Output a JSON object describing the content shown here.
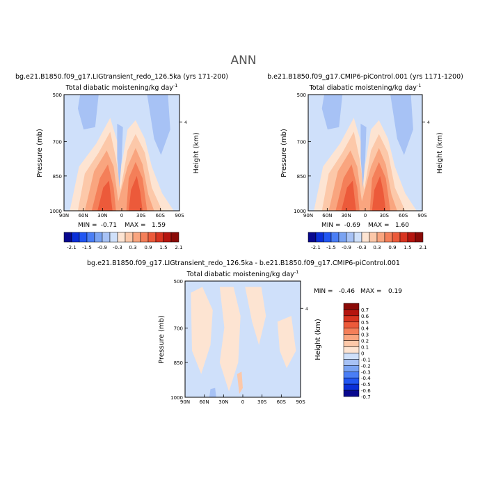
{
  "page_title": "ANN",
  "chart_data": [
    {
      "type": "heatmap",
      "case_label": "bg.e21.B1850.f09_g17.LIGtransient_redo_126.5ka (yrs 171-200)",
      "title": "Total diabatic moistening/kg day",
      "title_exponent": "-1",
      "ylabel": "Pressure (mb)",
      "ylabel_right": "Height (km)",
      "x_ticks": [
        "90N",
        "60N",
        "30N",
        "0",
        "30S",
        "60S",
        "90S"
      ],
      "y_ticks": [
        "500",
        "700",
        "850",
        "1000"
      ],
      "height_ticks": [
        "4"
      ],
      "stats": {
        "min_label": "MIN =",
        "min": "-0.71",
        "max_label": "MAX =",
        "max": "1.59"
      },
      "colorbar": {
        "levels": [
          -2.1,
          -1.8,
          -1.5,
          -1.2,
          -0.9,
          -0.6,
          -0.3,
          0,
          0.3,
          0.6,
          0.9,
          1.2,
          1.5,
          1.8,
          2.1
        ],
        "labels": [
          "-2.1",
          "-1.5",
          "-0.9",
          "-0.3",
          "0.3",
          "0.9",
          "1.5",
          "2.1"
        ]
      }
    },
    {
      "type": "heatmap",
      "case_label": "b.e21.B1850.f09_g17.CMIP6-piControl.001 (yrs 1171-1200)",
      "title": "Total diabatic moistening/kg day",
      "title_exponent": "-1",
      "ylabel": "Pressure (mb)",
      "ylabel_right": "Height (km)",
      "x_ticks": [
        "90N",
        "60N",
        "30N",
        "0",
        "30S",
        "60S",
        "90S"
      ],
      "y_ticks": [
        "500",
        "700",
        "850",
        "1000"
      ],
      "height_ticks": [
        "4"
      ],
      "stats": {
        "min_label": "MIN =",
        "min": "-0.69",
        "max_label": "MAX =",
        "max": "1.60"
      },
      "colorbar": {
        "levels": [
          -2.1,
          -1.8,
          -1.5,
          -1.2,
          -0.9,
          -0.6,
          -0.3,
          0,
          0.3,
          0.6,
          0.9,
          1.2,
          1.5,
          1.8,
          2.1
        ],
        "labels": [
          "-2.1",
          "-1.5",
          "-0.9",
          "-0.3",
          "0.3",
          "0.9",
          "1.5",
          "2.1"
        ]
      }
    },
    {
      "type": "heatmap",
      "case_label": "bg.e21.B1850.f09_g17.LIGtransient_redo_126.5ka - b.e21.B1850.f09_g17.CMIP6-piControl.001",
      "title": "Total diabatic moistening/kg day",
      "title_exponent": "-1",
      "ylabel": "Pressure (mb)",
      "ylabel_right": "Height (km)",
      "x_ticks": [
        "90N",
        "60N",
        "30N",
        "0",
        "30S",
        "60S",
        "90S"
      ],
      "y_ticks": [
        "500",
        "700",
        "850",
        "1000"
      ],
      "height_ticks": [
        "4"
      ],
      "stats": {
        "min_label": "MIN =",
        "min": "-0.46",
        "max_label": "MAX =",
        "max": "0.19"
      },
      "colorbar": {
        "levels": [
          -0.7,
          -0.6,
          -0.5,
          -0.4,
          -0.3,
          -0.2,
          -0.1,
          0,
          0.1,
          0.2,
          0.3,
          0.4,
          0.5,
          0.6,
          0.7
        ],
        "labels": [
          "-0.7",
          "-0.6",
          "-0.5",
          "-0.4",
          "-0.3",
          "-0.2",
          "-0.1",
          "0",
          "0.1",
          "0.2",
          "0.3",
          "0.4",
          "0.5",
          "0.6",
          "0.7"
        ]
      }
    }
  ],
  "colors": {
    "palette": [
      "#08088e",
      "#0a2fd8",
      "#2156f2",
      "#4a7ef5",
      "#7aa3f2",
      "#a7c2f5",
      "#cfe0fa",
      "#fde4d2",
      "#fcc8a9",
      "#f9a57f",
      "#f47f59",
      "#ec5a3a",
      "#d83420",
      "#b5150f",
      "#8a0a07"
    ]
  }
}
